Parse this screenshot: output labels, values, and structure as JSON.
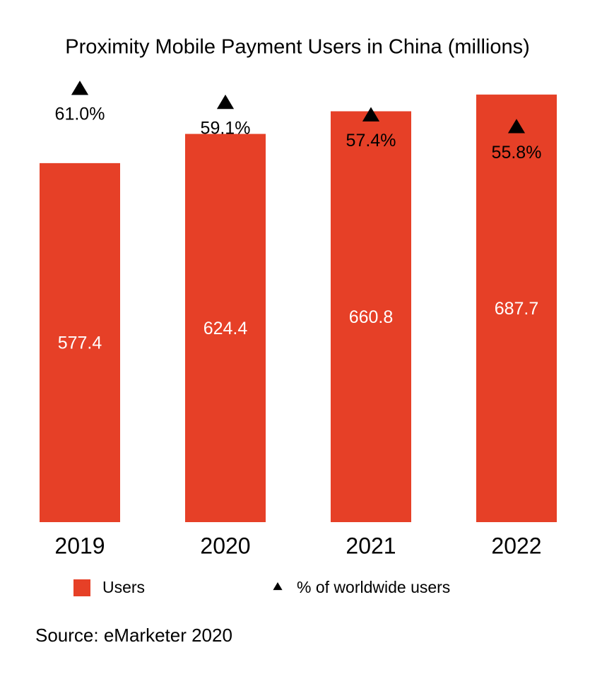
{
  "chart_data": {
    "type": "bar",
    "title": "Proximity Mobile Payment Users in China (millions)",
    "categories": [
      "2019",
      "2020",
      "2021",
      "2022"
    ],
    "series": [
      {
        "name": "Users",
        "type": "bar",
        "color": "#e64027",
        "values": [
          577.4,
          624.4,
          660.8,
          687.7
        ]
      },
      {
        "name": "% of worldwide users",
        "type": "scatter",
        "axis": "y2",
        "color": "#000000",
        "values": [
          61.0,
          59.1,
          57.4,
          55.8
        ],
        "value_labels": [
          "61.0%",
          "59.1%",
          "57.4%",
          "55.8%"
        ]
      }
    ],
    "ylim": [
      0,
      700
    ],
    "y2lim": [
      2,
      61.2
    ],
    "source": "Source: eMarketer 2020"
  }
}
